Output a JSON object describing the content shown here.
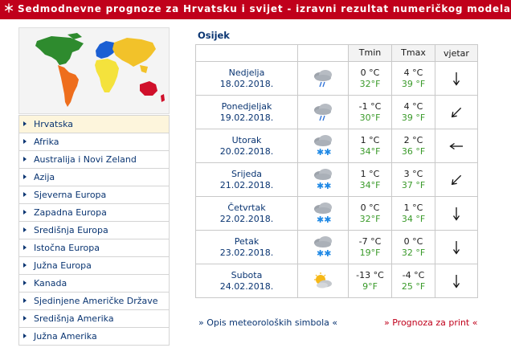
{
  "header": {
    "title": "Sedmodnevne prognoze za Hrvatsku i svijet - izravni rezultat numeričkog modela",
    "icon": "snow-icon"
  },
  "map": {
    "icon": "world-map"
  },
  "nav": {
    "items": [
      {
        "label": "Hrvatska",
        "selected": true
      },
      {
        "label": "Afrika"
      },
      {
        "label": "Australija i Novi Zeland"
      },
      {
        "label": "Azija"
      },
      {
        "label": "Sjeverna Europa"
      },
      {
        "label": "Zapadna Europa"
      },
      {
        "label": "Središnja Europa"
      },
      {
        "label": "Istočna Europa"
      },
      {
        "label": "Južna Europa"
      },
      {
        "label": "Kanada"
      },
      {
        "label": "Sjedinjene Američke Države"
      },
      {
        "label": "Središnja Amerika"
      },
      {
        "label": "Južna Amerika"
      }
    ]
  },
  "forecast": {
    "city": "Osijek",
    "headers": {
      "tmin": "Tmin",
      "tmax": "Tmax",
      "wind": "vjetar"
    },
    "rows": [
      {
        "day": "Nedjelja",
        "date": "18.02.2018.",
        "icon": "cloud-rain-icon",
        "tmin_c": "0 °C",
        "tmin_f": "32°F",
        "tmax_c": "4 °C",
        "tmax_f": "39 °F",
        "wind": "S"
      },
      {
        "day": "Ponedjeljak",
        "date": "19.02.2018.",
        "icon": "cloud-rain-icon",
        "tmin_c": "-1 °C",
        "tmin_f": "30°F",
        "tmax_c": "4 °C",
        "tmax_f": "39 °F",
        "wind": "SW"
      },
      {
        "day": "Utorak",
        "date": "20.02.2018.",
        "icon": "cloud-snow-icon",
        "tmin_c": "1 °C",
        "tmin_f": "34°F",
        "tmax_c": "2 °C",
        "tmax_f": "36 °F",
        "wind": "W"
      },
      {
        "day": "Srijeda",
        "date": "21.02.2018.",
        "icon": "cloud-snow-icon",
        "tmin_c": "1 °C",
        "tmin_f": "34°F",
        "tmax_c": "3 °C",
        "tmax_f": "37 °F",
        "wind": "SW"
      },
      {
        "day": "Četvrtak",
        "date": "22.02.2018.",
        "icon": "cloud-snow-icon",
        "tmin_c": "0 °C",
        "tmin_f": "32°F",
        "tmax_c": "1 °C",
        "tmax_f": "34 °F",
        "wind": "S"
      },
      {
        "day": "Petak",
        "date": "23.02.2018.",
        "icon": "cloud-snow-icon",
        "tmin_c": "-7 °C",
        "tmin_f": "19°F",
        "tmax_c": "0 °C",
        "tmax_f": "32 °F",
        "wind": "S"
      },
      {
        "day": "Subota",
        "date": "24.02.2018.",
        "icon": "sun-cloud-icon",
        "tmin_c": "-13 °C",
        "tmin_f": "9°F",
        "tmax_c": "-4 °C",
        "tmax_f": "25 °F",
        "wind": "S"
      }
    ]
  },
  "footer": {
    "symbols_link": "» Opis meteoroloških simbola «",
    "print_link": "» Prognoza za print «"
  },
  "colors": {
    "brand": "#c0001b",
    "link": "#0a3572",
    "fahrenheit": "#3a9a2a",
    "selected": "#fdf5dc"
  }
}
